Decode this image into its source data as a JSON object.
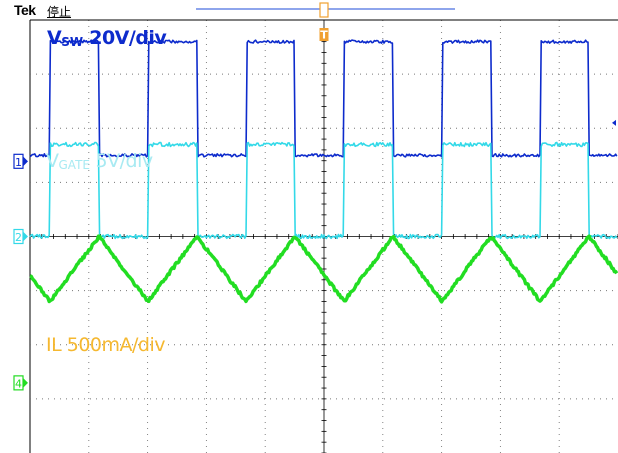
{
  "header": {
    "brand": "Tek",
    "status": "停止"
  },
  "colors": {
    "ch1": "#0d2bcc",
    "ch2": "#33d9e8",
    "ch4": "#22dd22",
    "trigger": "#f0a030",
    "grid": "#000000",
    "background": "#ffffff"
  },
  "labels": {
    "vsw_prefix": "V",
    "vsw_sub": "SW",
    "vsw_scale": "20V/div",
    "vgate_prefix": "V",
    "vgate_sub": "GATE",
    "vgate_scale": "5V/div",
    "il_text": "IL 500mA/div"
  },
  "markers": {
    "ch1": "1",
    "ch2": "2",
    "ch4": "4",
    "trigger_top": "T"
  },
  "chart_data": {
    "type": "line",
    "grid": true,
    "divisions": {
      "horizontal": 10,
      "vertical": 8
    },
    "waveform_periods": 6,
    "duty_cycle": 0.5,
    "series": [
      {
        "name": "VSW",
        "channel": "1",
        "scale": "20V/div",
        "low_div": 0,
        "high_div": 2.1,
        "shape": "square"
      },
      {
        "name": "VGATE",
        "channel": "2",
        "scale": "5V/div",
        "low_div": 0,
        "high_div": 1.7,
        "shape": "square"
      },
      {
        "name": "IL",
        "channel": "4",
        "scale": "500mA/div",
        "low_div": 1.8,
        "high_div": 3.0,
        "shape": "triangle"
      }
    ]
  }
}
